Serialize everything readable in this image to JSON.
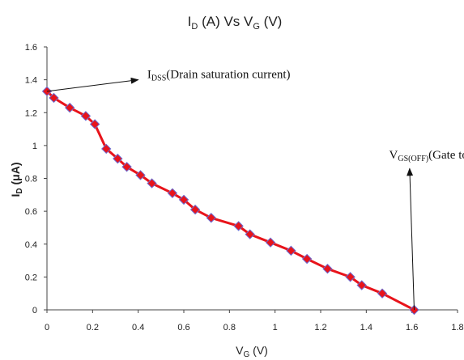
{
  "chart_data": {
    "type": "line",
    "title": {
      "main_1": "I",
      "sub_1": "D",
      "main_2": " (A) Vs V",
      "sub_2": "G",
      "main_3": " (V)"
    },
    "xlabel": {
      "main": "V",
      "sub": "G",
      "rest": " (V)"
    },
    "ylabel": {
      "main": "I",
      "sub": "D",
      "rest": " (μA)"
    },
    "xlim": [
      0,
      1.8
    ],
    "ylim": [
      0,
      1.6
    ],
    "xticks": [
      "0",
      "0.2",
      "0.4",
      "0.6",
      "0.8",
      "1",
      "1.2",
      "1.4",
      "1.6",
      "1.8"
    ],
    "yticks": [
      "0",
      "0.2",
      "0.4",
      "0.6",
      "0.8",
      "1",
      "1.2",
      "1.4",
      "1.6"
    ],
    "grid": false,
    "series": [
      {
        "line_color": "#e8141b",
        "marker_color": "#e8141b",
        "marker_edge": "#6a6ad0",
        "x": [
          0,
          0.03,
          0.1,
          0.17,
          0.21,
          0.26,
          0.31,
          0.35,
          0.41,
          0.46,
          0.55,
          0.6,
          0.65,
          0.72,
          0.84,
          0.89,
          0.98,
          1.07,
          1.14,
          1.23,
          1.33,
          1.38,
          1.47,
          1.61
        ],
        "y": [
          1.33,
          1.29,
          1.23,
          1.18,
          1.13,
          0.98,
          0.92,
          0.87,
          0.82,
          0.77,
          0.71,
          0.67,
          0.61,
          0.56,
          0.51,
          0.46,
          0.41,
          0.36,
          0.31,
          0.25,
          0.2,
          0.15,
          0.1,
          0.0
        ]
      }
    ],
    "annotations": [
      {
        "id": "idss",
        "text_main": "I",
        "text_sub": "DSS",
        "text_rest": "(Drain saturation current)",
        "point": [
          0,
          1.33
        ],
        "arrow_to": [
          0.4,
          1.4
        ],
        "text_anchor": [
          0.44,
          1.41
        ]
      },
      {
        "id": "vgsoff",
        "text_main": "V",
        "text_sub": "GS(OFF)",
        "text_rest": "(Gate to source",
        "point": [
          1.61,
          0.0
        ],
        "arrow_to": [
          1.59,
          0.86
        ],
        "text_anchor": [
          1.5,
          0.92
        ]
      }
    ]
  }
}
